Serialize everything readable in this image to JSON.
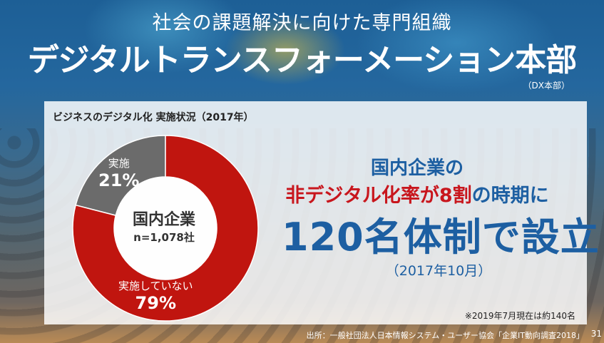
{
  "header": {
    "line1": "社会の課題解決に向けた専門組織",
    "line2": "デジタルトランスフォーメーション本部",
    "abbr": "（DX本部）"
  },
  "chart_data": {
    "type": "pie",
    "title": "ビジネスのデジタル化 実施状況（2017年）",
    "center_title": "国内企業",
    "center_sub": "n=1,078社",
    "categories": [
      "実施",
      "実施していない"
    ],
    "values": [
      21,
      79
    ],
    "value_labels": [
      "21%",
      "79%"
    ],
    "colors": [
      "#6b6b6b",
      "#c0150f"
    ]
  },
  "message": {
    "line1": "国内企業の",
    "line2a": "非デジタル化率が8割",
    "line2b": "の時期に",
    "line3": "120名体制で設立",
    "line4": "（2017年10月）"
  },
  "note": "※2019年7月現在は約140名",
  "source": "出所：一般社団法人日本情報システム・ユーザー協会「企業IT動向調査2018」",
  "page_number": "31"
}
